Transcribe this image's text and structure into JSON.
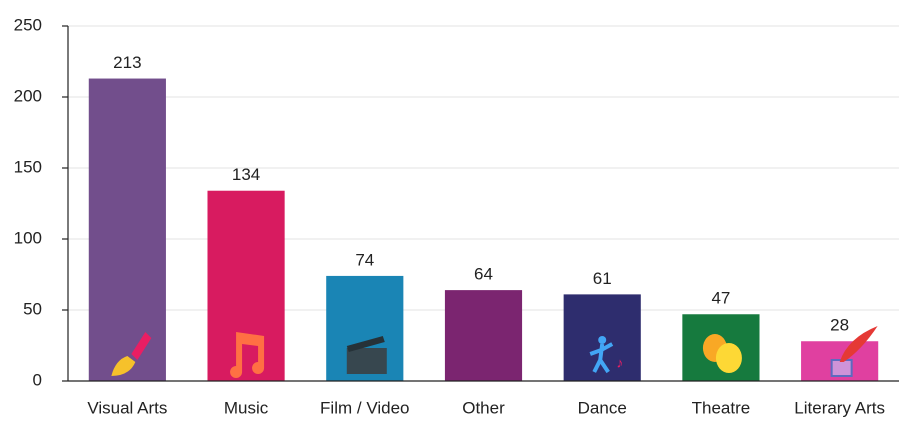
{
  "chart_data": {
    "type": "bar",
    "categories": [
      "Visual Arts",
      "Music",
      "Film / Video",
      "Other",
      "Dance",
      "Theatre",
      "Literary Arts"
    ],
    "values": [
      213,
      134,
      74,
      64,
      61,
      47,
      28
    ],
    "colors": [
      "#724e8c",
      "#d81b60",
      "#1a85b5",
      "#7b2570",
      "#2e2d6e",
      "#167a3e",
      "#e040a0"
    ],
    "ylim": [
      0,
      250
    ],
    "yticks": [
      0,
      50,
      100,
      150,
      200,
      250
    ],
    "grid": true
  }
}
